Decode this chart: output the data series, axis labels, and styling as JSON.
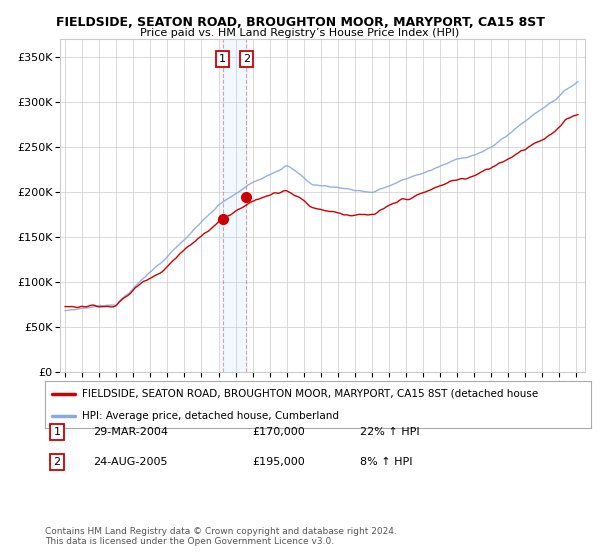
{
  "title": "FIELDSIDE, SEATON ROAD, BROUGHTON MOOR, MARYPORT, CA15 8ST",
  "subtitle": "Price paid vs. HM Land Registry’s House Price Index (HPI)",
  "ylim": [
    0,
    370000
  ],
  "yticks": [
    0,
    50000,
    100000,
    150000,
    200000,
    250000,
    300000,
    350000
  ],
  "ytick_labels": [
    "£0",
    "£50K",
    "£100K",
    "£150K",
    "£200K",
    "£250K",
    "£300K",
    "£350K"
  ],
  "transactions": [
    {
      "date": "29-MAR-2004",
      "price": 170000,
      "pct": "22%",
      "label": "1",
      "x": 2004.24
    },
    {
      "date": "24-AUG-2005",
      "price": 195000,
      "pct": "8%",
      "label": "2",
      "x": 2005.64
    }
  ],
  "legend_line1": "FIELDSIDE, SEATON ROAD, BROUGHTON MOOR, MARYPORT, CA15 8ST (detached house",
  "legend_line2": "HPI: Average price, detached house, Cumberland",
  "footnote": "Contains HM Land Registry data © Crown copyright and database right 2024.\nThis data is licensed under the Open Government Licence v3.0.",
  "line_color_red": "#cc0000",
  "line_color_blue": "#88aadd",
  "vline_color": "#bbddff",
  "background_color": "#ffffff",
  "grid_color": "#cccccc",
  "xlim_left": 1994.7,
  "xlim_right": 2025.5,
  "title_fontsize": 9.0,
  "subtitle_fontsize": 8.0
}
